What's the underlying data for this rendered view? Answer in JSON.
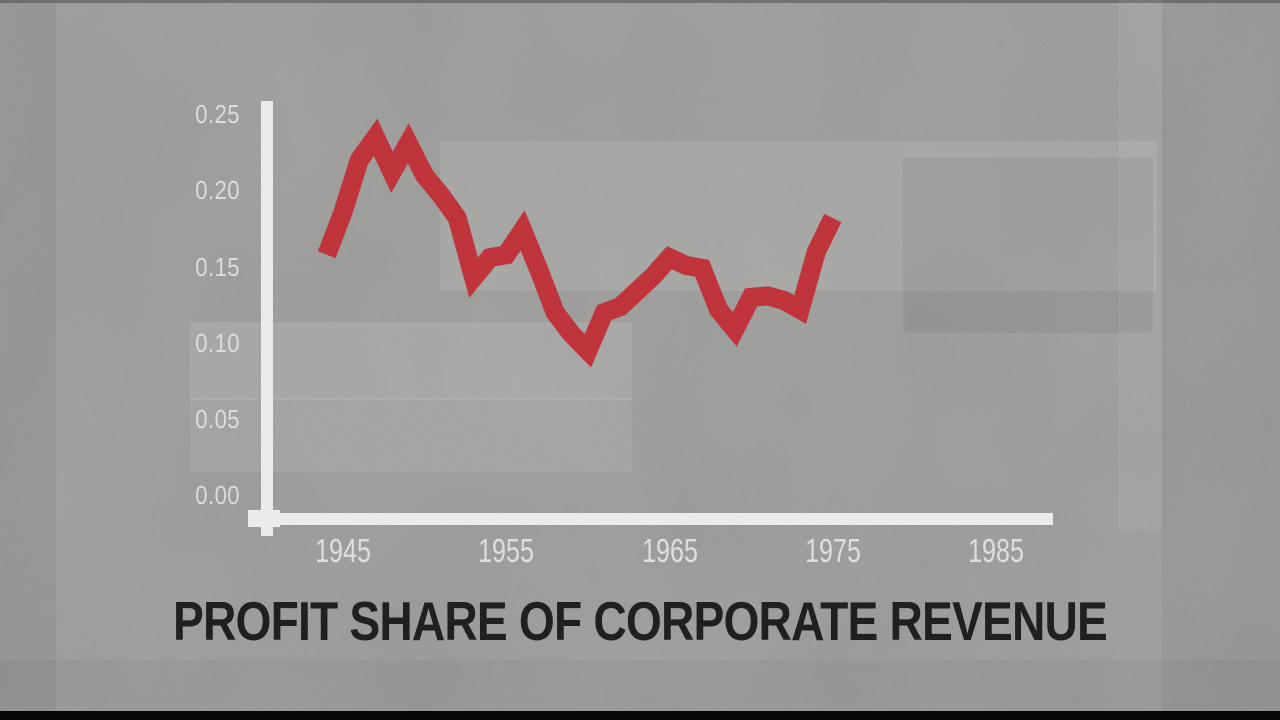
{
  "chart": {
    "title": "PROFIT SHARE OF CORPORATE REVENUE",
    "y_ticks": [
      "0.25",
      "0.20",
      "0.15",
      "0.10",
      "0.05",
      "0.00"
    ],
    "x_ticks": [
      "1945",
      "1955",
      "1965",
      "1975",
      "1985"
    ]
  },
  "chart_data": {
    "type": "line",
    "title": "PROFIT SHARE OF CORPORATE REVENUE",
    "series": [
      {
        "name": "Profit share of corporate revenue",
        "x": [
          1944,
          1945,
          1946,
          1947,
          1948,
          1949,
          1950,
          1951,
          1952,
          1953,
          1954,
          1955,
          1956,
          1957,
          1958,
          1959,
          1960,
          1961,
          1962,
          1963,
          1964,
          1965,
          1966,
          1967,
          1968,
          1969,
          1970,
          1971,
          1972,
          1973,
          1974,
          1975
        ],
        "values": [
          0.158,
          0.186,
          0.22,
          0.235,
          0.212,
          0.231,
          0.21,
          0.197,
          0.182,
          0.143,
          0.156,
          0.158,
          0.174,
          0.148,
          0.12,
          0.106,
          0.095,
          0.12,
          0.124,
          0.134,
          0.144,
          0.156,
          0.151,
          0.149,
          0.122,
          0.109,
          0.13,
          0.131,
          0.128,
          0.122,
          0.16,
          0.182
        ]
      }
    ],
    "xlabel": "",
    "ylabel": "",
    "xlim": [
      1939,
      1989
    ],
    "ylim": [
      0,
      0.25
    ],
    "x_tick_labels": [
      "1945",
      "1955",
      "1965",
      "1975",
      "1985"
    ],
    "y_tick_labels": [
      "0.25",
      "0.20",
      "0.15",
      "0.10",
      "0.05",
      "0.00"
    ],
    "grid": false,
    "legend": false,
    "line_color": "#c02a32"
  },
  "colors": {
    "background": "#9a9a98",
    "axis": "#efefed",
    "tick_text": "#e3e3e1",
    "title_text": "#141414",
    "line_red": "#c02a32",
    "letterbox": "#060606"
  }
}
